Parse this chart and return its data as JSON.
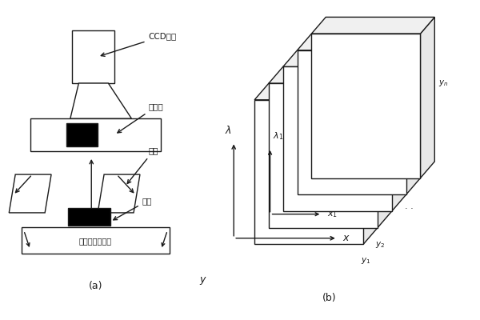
{
  "background_color": "#ffffff",
  "title_a": "(a)",
  "title_b": "(b)",
  "font_color": "#1a1a1a",
  "label_ccd": "CCD相机",
  "label_spectrometer": "光谱仪",
  "label_lightsource": "光源",
  "label_sample": "样品",
  "label_stage": "电控移动载物台",
  "label_lambda1": "λ1",
  "label_x1": "x1",
  "label_y": "y",
  "label_x": "x",
  "label_lambda": "λ",
  "label_y1": "y1",
  "label_y2": "y2",
  "label_yn": "yn",
  "lc": "#1a1a1a"
}
